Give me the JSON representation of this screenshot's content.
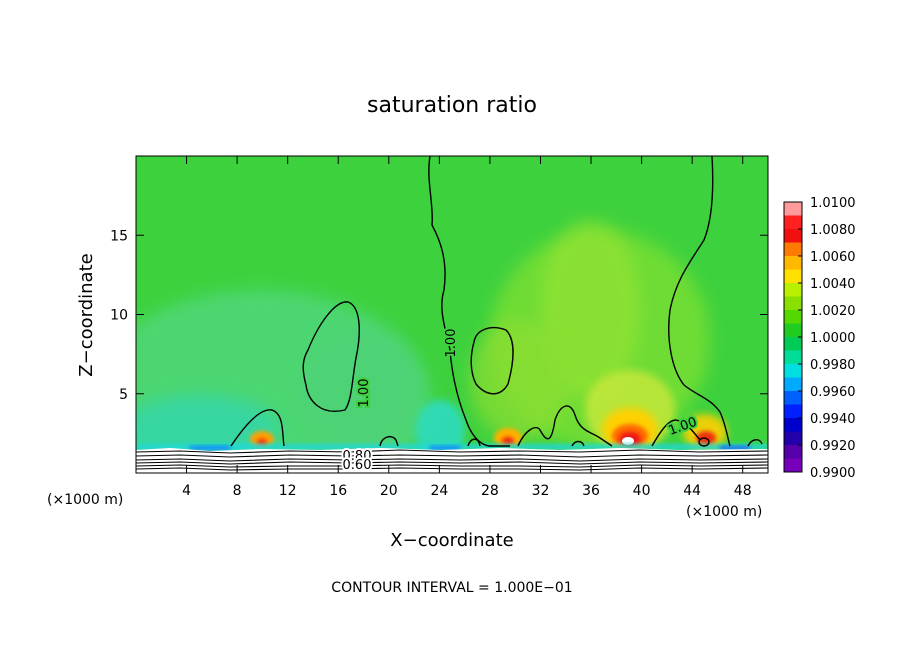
{
  "chart_data": {
    "type": "heatmap",
    "title": "saturation ratio",
    "xlabel": "X−coordinate",
    "ylabel": "Z−coordinate",
    "x_unit": "(×1000 m)",
    "y_unit": "(×1000 m)",
    "xlim": [
      0,
      50
    ],
    "ylim": [
      0,
      20
    ],
    "x_ticks": [
      4,
      8,
      12,
      16,
      20,
      24,
      28,
      32,
      36,
      40,
      44,
      48
    ],
    "y_ticks": [
      5,
      10,
      15
    ],
    "colorbar": {
      "levels": [
        "1.0100",
        "1.0080",
        "1.0060",
        "1.0040",
        "1.0020",
        "1.0000",
        "0.9980",
        "0.9960",
        "0.9940",
        "0.9920",
        "0.9900"
      ],
      "colors": [
        "#ff9a9a",
        "#ff2020",
        "#f01010",
        "#ff7a00",
        "#ffb800",
        "#ffe000",
        "#b8f000",
        "#8ae000",
        "#54d800",
        "#20cc20",
        "#00cc55",
        "#00dd99",
        "#00e0e0",
        "#00aaff",
        "#0060ff",
        "#0020ff",
        "#0000cc",
        "#2200aa",
        "#5500aa",
        "#7700bb"
      ]
    },
    "contour_labels": [
      "1.00",
      "1.00",
      "1.00",
      "0.80",
      "0.60"
    ],
    "contour_interval": "1.000E−01",
    "footer": "CONTOUR INTERVAL = 1.000E−01",
    "grid": false
  }
}
